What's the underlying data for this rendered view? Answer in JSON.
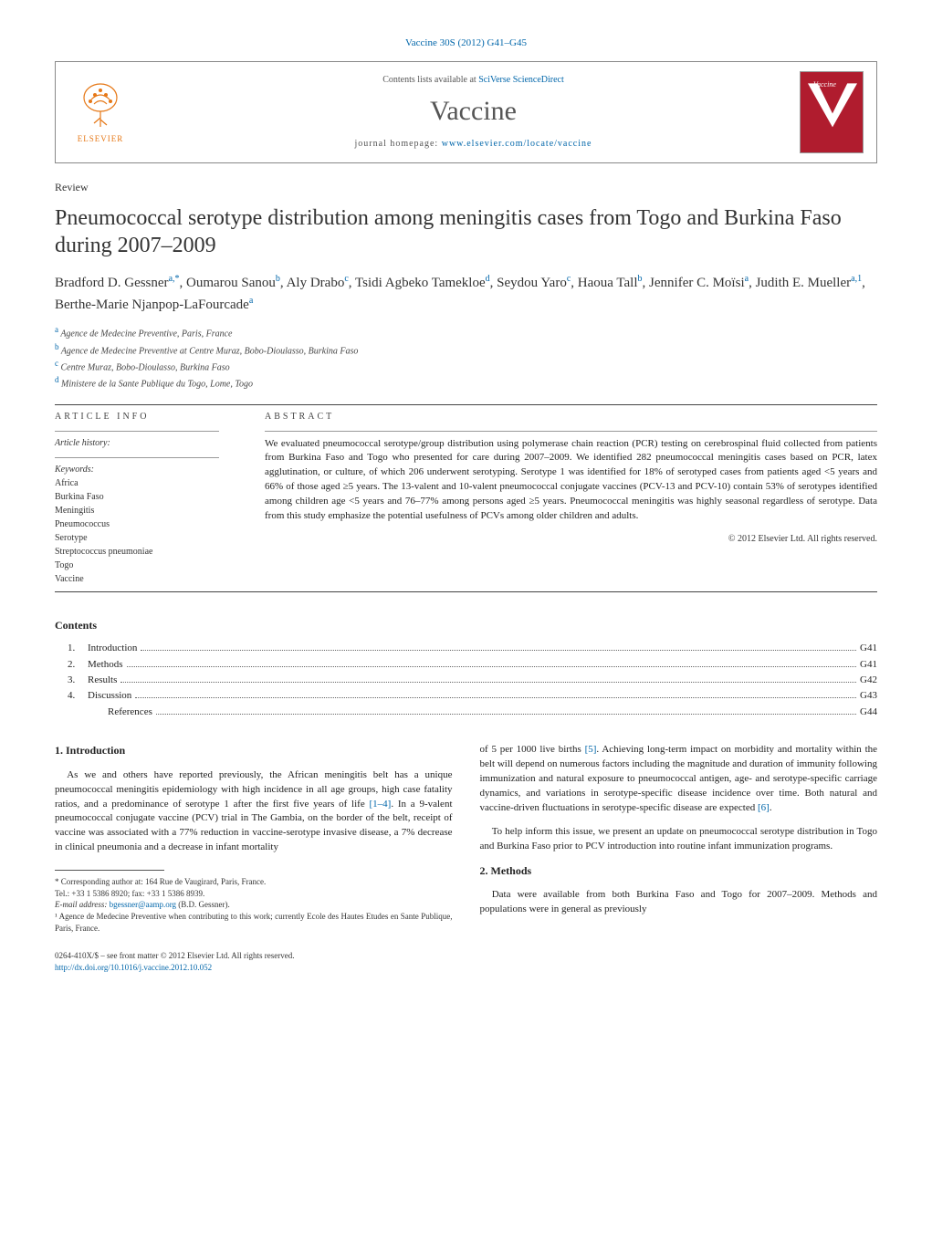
{
  "journal_ref": "Vaccine 30S (2012) G41–G45",
  "header": {
    "contents_lists_pre": "Contents lists available at ",
    "contents_lists_link": "SciVerse ScienceDirect",
    "journal_name": "Vaccine",
    "homepage_pre": "journal homepage: ",
    "homepage_link": "www.elsevier.com/locate/vaccine",
    "elsevier_label": "ELSEVIER",
    "cover_label": "Vaccine"
  },
  "article_type": "Review",
  "title": "Pneumococcal serotype distribution among meningitis cases from Togo and Burkina Faso during 2007–2009",
  "authors_html": "Bradford D. Gessner|a,*|, Oumarou Sanou|b|, Aly Drabo|c|, Tsidi Agbeko Tamekloe|d|, Seydou Yaro|c|, Haoua Tall|b|, Jennifer C. Moïsi|a|, Judith E. Mueller|a,1|, Berthe-Marie Njanpop-LaFourcade|a|",
  "affiliations": [
    {
      "sup": "a",
      "text": "Agence de Medecine Preventive, Paris, France"
    },
    {
      "sup": "b",
      "text": "Agence de Medecine Preventive at Centre Muraz, Bobo-Dioulasso, Burkina Faso"
    },
    {
      "sup": "c",
      "text": "Centre Muraz, Bobo-Dioulasso, Burkina Faso"
    },
    {
      "sup": "d",
      "text": "Ministere de la Sante Publique du Togo, Lome, Togo"
    }
  ],
  "info": {
    "section_head": "ARTICLE INFO",
    "history_label": "Article history:",
    "keywords_label": "Keywords:",
    "keywords": [
      "Africa",
      "Burkina Faso",
      "Meningitis",
      "Pneumococcus",
      "Serotype",
      "Streptococcus pneumoniae",
      "Togo",
      "Vaccine"
    ]
  },
  "abstract": {
    "section_head": "ABSTRACT",
    "text": "We evaluated pneumococcal serotype/group distribution using polymerase chain reaction (PCR) testing on cerebrospinal fluid collected from patients from Burkina Faso and Togo who presented for care during 2007–2009. We identified 282 pneumococcal meningitis cases based on PCR, latex agglutination, or culture, of which 206 underwent serotyping. Serotype 1 was identified for 18% of serotyped cases from patients aged <5 years and 66% of those aged ≥5 years. The 13-valent and 10-valent pneumococcal conjugate vaccines (PCV-13 and PCV-10) contain 53% of serotypes identified among children age <5 years and 76–77% among persons aged ≥5 years. Pneumococcal meningitis was highly seasonal regardless of serotype. Data from this study emphasize the potential usefulness of PCVs among older children and adults.",
    "copyright": "© 2012 Elsevier Ltd. All rights reserved."
  },
  "contents": {
    "heading": "Contents",
    "items": [
      {
        "num": "1.",
        "title": "Introduction",
        "page": "G41"
      },
      {
        "num": "2.",
        "title": "Methods",
        "page": "G41"
      },
      {
        "num": "3.",
        "title": "Results",
        "page": "G42"
      },
      {
        "num": "4.",
        "title": "Discussion",
        "page": "G43"
      },
      {
        "num": "",
        "title": "References",
        "page": "G44",
        "sub": true
      }
    ]
  },
  "body": {
    "intro_heading": "1. Introduction",
    "intro_p1_a": "As we and others have reported previously, the African meningitis belt has a unique pneumococcal meningitis epidemiology with high incidence in all age groups, high case fatality ratios, and a predominance of serotype 1 after the first five years of life ",
    "intro_ref1": "[1–4]",
    "intro_p1_b": ". In a 9-valent pneumococcal conjugate vaccine (PCV) trial in The Gambia, on the border of the belt, receipt of vaccine was associated with a 77% reduction in vaccine-serotype invasive disease, a 7% decrease in clinical pneumonia and a decrease in infant mortality",
    "col2_p1_a": "of 5 per 1000 live births ",
    "col2_ref5": "[5]",
    "col2_p1_b": ". Achieving long-term impact on morbidity and mortality within the belt will depend on numerous factors including the magnitude and duration of immunity following immunization and natural exposure to pneumococcal antigen, age- and serotype-specific carriage dynamics, and variations in serotype-specific disease incidence over time. Both natural and vaccine-driven fluctuations in serotype-specific disease are expected ",
    "col2_ref6": "[6]",
    "col2_p1_c": ".",
    "col2_p2": "To help inform this issue, we present an update on pneumococcal serotype distribution in Togo and Burkina Faso prior to PCV introduction into routine infant immunization programs.",
    "methods_heading": "2. Methods",
    "methods_p1": "Data were available from both Burkina Faso and Togo for 2007–2009. Methods and populations were in general as previously"
  },
  "footnotes": {
    "corr_label": "* Corresponding author at: 164 Rue de Vaugirard, Paris, France.",
    "tel": "Tel.: +33 1 5386 8920; fax: +33 1 5386 8939.",
    "email_label": "E-mail address: ",
    "email": "bgessner@aamp.org",
    "email_tail": " (B.D. Gessner).",
    "note1": "¹ Agence de Medecine Preventive when contributing to this work; currently Ecole des Hautes Etudes en Sante Publique, Paris, France."
  },
  "footer": {
    "issn": "0264-410X/$ – see front matter © 2012 Elsevier Ltd. All rights reserved.",
    "doi": "http://dx.doi.org/10.1016/j.vaccine.2012.10.052"
  },
  "colors": {
    "link": "#0066aa",
    "elsevier_orange": "#e67817",
    "cover_red": "#b01c2e"
  }
}
